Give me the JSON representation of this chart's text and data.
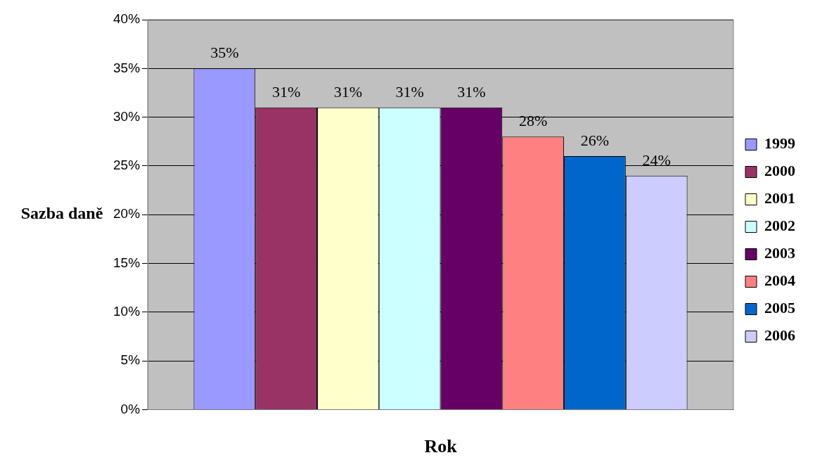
{
  "chart_data": {
    "type": "bar",
    "xlabel": "Rok",
    "ylabel": "Sazba daně",
    "categories": [
      null
    ],
    "series": [
      {
        "name": "1999",
        "color": "#9999ff",
        "values": [
          35
        ],
        "value_labels": [
          "35%"
        ]
      },
      {
        "name": "2000",
        "color": "#993366",
        "values": [
          31
        ],
        "value_labels": [
          "31%"
        ]
      },
      {
        "name": "2001",
        "color": "#ffffcc",
        "values": [
          31
        ],
        "value_labels": [
          "31%"
        ]
      },
      {
        "name": "2002",
        "color": "#ccffff",
        "values": [
          31
        ],
        "value_labels": [
          "31%"
        ]
      },
      {
        "name": "2003",
        "color": "#660066",
        "values": [
          31
        ],
        "value_labels": [
          "31%"
        ]
      },
      {
        "name": "2004",
        "color": "#ff8080",
        "values": [
          28
        ],
        "value_labels": [
          "28%"
        ]
      },
      {
        "name": "2005",
        "color": "#0066cc",
        "values": [
          26
        ],
        "value_labels": [
          "26%"
        ]
      },
      {
        "name": "2006",
        "color": "#ccccff",
        "values": [
          24
        ],
        "value_labels": [
          "24%"
        ]
      }
    ],
    "ylim": [
      0,
      40
    ],
    "yticks": [
      {
        "value": 0,
        "label": "0%"
      },
      {
        "value": 5,
        "label": "5%"
      },
      {
        "value": 10,
        "label": "10%"
      },
      {
        "value": 15,
        "label": "15%"
      },
      {
        "value": 20,
        "label": "20%"
      },
      {
        "value": 25,
        "label": "25%"
      },
      {
        "value": 30,
        "label": "30%"
      },
      {
        "value": 35,
        "label": "35%"
      },
      {
        "value": 40,
        "label": "40%"
      }
    ],
    "grid": "y",
    "legend": "right"
  }
}
